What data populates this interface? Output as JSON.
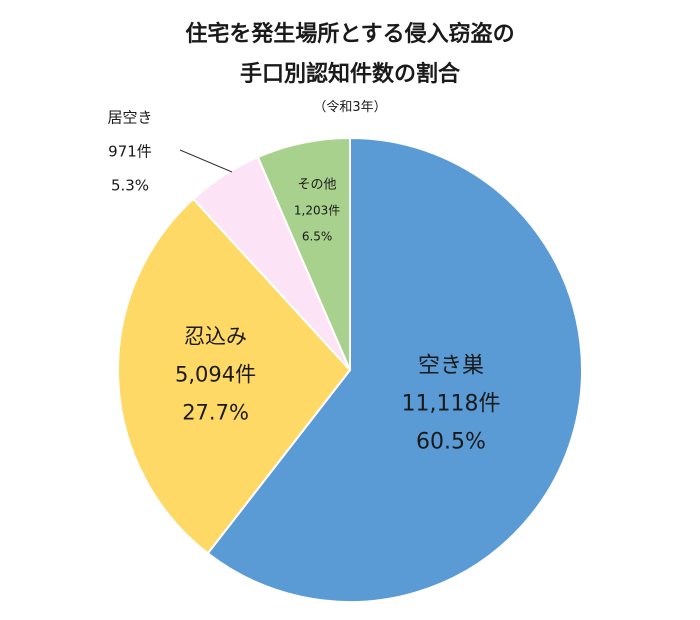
{
  "chart_data": {
    "type": "pie",
    "title_line1": "住宅を発生場所とする侵入窃盗の",
    "title_line2": "手口別認知件数の割合",
    "subtitle": "（令和3年）",
    "slices": [
      {
        "label": "空き巣",
        "count": 11118,
        "count_label": "11,118件",
        "percent_label": "60.5%",
        "value": 60.5,
        "color": "#5b9bd5"
      },
      {
        "label": "忍込み",
        "count": 5094,
        "count_label": "5,094件",
        "percent_label": "27.7%",
        "value": 27.7,
        "color": "#ffd966"
      },
      {
        "label": "居空き",
        "count": 971,
        "count_label": "971件",
        "percent_label": "5.3%",
        "value": 5.3,
        "color": "#fce4f6"
      },
      {
        "label": "その他",
        "count": 1203,
        "count_label": "1,203件",
        "percent_label": "6.5%",
        "value": 6.5,
        "color": "#a9d18e"
      }
    ]
  }
}
